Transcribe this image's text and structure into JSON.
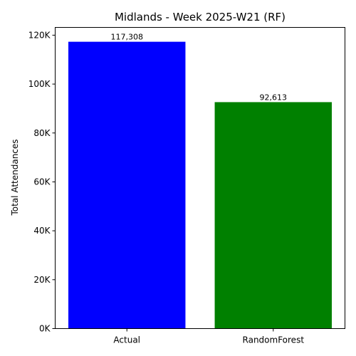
{
  "chart_data": {
    "type": "bar",
    "title": "Midlands - Week 2025-W21 (RF)",
    "xlabel": "",
    "ylabel": "Total Attendances",
    "categories": [
      "Actual",
      "RandomForest"
    ],
    "values": [
      117308,
      92613
    ],
    "value_labels": [
      "117,308",
      "92,613"
    ],
    "colors": [
      "#0000ff",
      "#008000"
    ],
    "ylim": [
      0,
      123173
    ],
    "yticks": [
      0,
      20000,
      40000,
      60000,
      80000,
      100000,
      120000
    ],
    "ytick_labels": [
      "0K",
      "20K",
      "40K",
      "60K",
      "80K",
      "100K",
      "120K"
    ],
    "grid": false,
    "legend": "none"
  }
}
